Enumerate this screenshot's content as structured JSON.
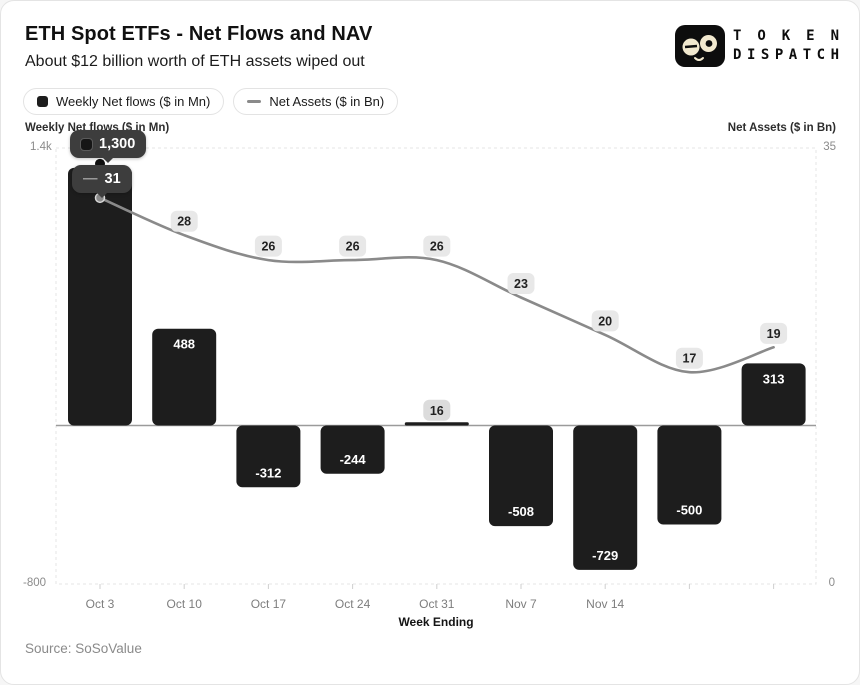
{
  "header": {
    "title": "ETH Spot ETFs - Net Flows and NAV",
    "subtitle": "About $12 billion worth of ETH assets wiped out"
  },
  "logo": {
    "line1": "TOKEN",
    "line2": "DISPATCH"
  },
  "legend": {
    "items": [
      {
        "label": "Weekly Net flows ($ in Mn)",
        "icon": "bar-swatch",
        "color": "#1d1d1d"
      },
      {
        "label": "Net Assets ($ in Bn)",
        "icon": "line-swatch",
        "color": "#8a8a8a"
      }
    ]
  },
  "axes": {
    "left_title": "Weekly Net flows ($ in Mn)",
    "right_title": "Net Assets ($ in Bn)",
    "x_title": "Week Ending",
    "left_top_tick": "1.4k",
    "left_bottom_tick": "-800",
    "right_top_tick": "35",
    "right_bottom_tick": "0"
  },
  "tooltip": {
    "bar_value": "1,300",
    "line_dash": "—",
    "line_value": "31"
  },
  "source": "Source: SoSoValue",
  "colors": {
    "bar": "#1d1d1d",
    "line": "#8a8a8a",
    "pill_bg": "#e8e8e8",
    "pill_bg_bar": "#dcdcdc",
    "tooltip_bg": "#3d3d3d",
    "zero_line": "#9b9b9b",
    "plot_border": "#e4e4e4",
    "tick": "#cfcfcf",
    "tick_text": "#7d7d7d",
    "bar_label": "#ffffff",
    "pill_text": "#222222"
  },
  "chart_data": {
    "type": "bar+line",
    "title": "ETH Spot ETFs - Net Flows and NAV",
    "subtitle": "About $12 billion worth of ETH assets wiped out",
    "categories": [
      "Oct 3",
      "Oct 10",
      "Oct 17",
      "Oct 24",
      "Oct 31",
      "Nov 7",
      "Nov 14",
      "",
      ""
    ],
    "series": [
      {
        "name": "Weekly Net flows ($ in Mn)",
        "type": "bar",
        "axis": "left",
        "values": [
          1300,
          488,
          -312,
          -244,
          16,
          -508,
          -729,
          -500,
          313
        ],
        "labels": [
          "1,300",
          "488",
          "-312",
          "-244",
          "16",
          "-508",
          "-729",
          "-500",
          "313"
        ]
      },
      {
        "name": "Net Assets ($ in Bn)",
        "type": "line",
        "axis": "right",
        "values": [
          31,
          28,
          26,
          26,
          26,
          23,
          20,
          17,
          19
        ]
      }
    ],
    "left_axis": {
      "label": "Weekly Net flows ($ in Mn)",
      "min": -800,
      "max": 1400,
      "ticks": [
        "1.4k",
        "-800"
      ]
    },
    "right_axis": {
      "label": "Net Assets ($ in Bn)",
      "min": 0,
      "max": 35,
      "ticks": [
        "35",
        "0"
      ]
    },
    "xlabel": "Week Ending",
    "grid": "dashed plot border, solid zero line",
    "legend_position": "top-left",
    "callout": {
      "category": "Oct 3",
      "bar": "1,300",
      "line": "31"
    }
  }
}
